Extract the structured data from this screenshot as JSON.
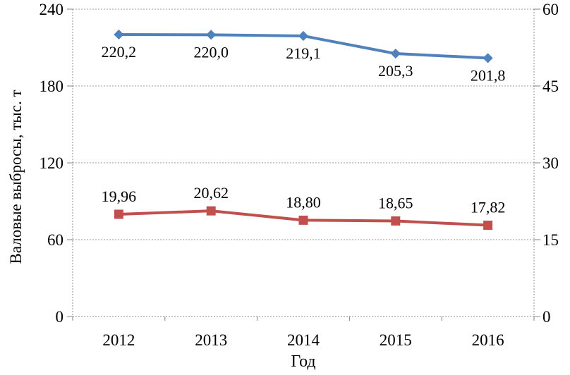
{
  "chart_data": {
    "type": "line",
    "title": "",
    "categories": [
      "2012",
      "2013",
      "2014",
      "2015",
      "2016"
    ],
    "series": [
      {
        "id": "series-1",
        "axis": "left",
        "marker": "diamond",
        "color": "#4F81BD",
        "values": [
          220.2,
          220.0,
          219.1,
          205.3,
          201.8
        ],
        "labels": [
          "220,2",
          "220,0",
          "219,1",
          "205,3",
          "201,8"
        ],
        "label_position": "below"
      },
      {
        "id": "series-2",
        "axis": "right",
        "marker": "square",
        "color": "#C0504D",
        "values": [
          19.96,
          20.62,
          18.8,
          18.65,
          17.82
        ],
        "labels": [
          "19,96",
          "20,62",
          "18,80",
          "18,65",
          "17,82"
        ],
        "label_position": "above"
      }
    ],
    "left_axis": {
      "label": "Валовые выбросы, тыс. т",
      "range": [
        0,
        240
      ],
      "ticks": [
        0,
        60,
        120,
        180,
        240
      ]
    },
    "right_axis": {
      "label": "",
      "range": [
        0,
        60
      ],
      "ticks": [
        0,
        15,
        30,
        45,
        60
      ]
    },
    "x_axis": {
      "label": "Год"
    },
    "legend": "none",
    "grid": "horizontal-dashed",
    "colors": {
      "grid": "#999999",
      "axis": "#8c8c8c",
      "tick": "#808080",
      "text": "#000000",
      "background": "#ffffff"
    }
  }
}
